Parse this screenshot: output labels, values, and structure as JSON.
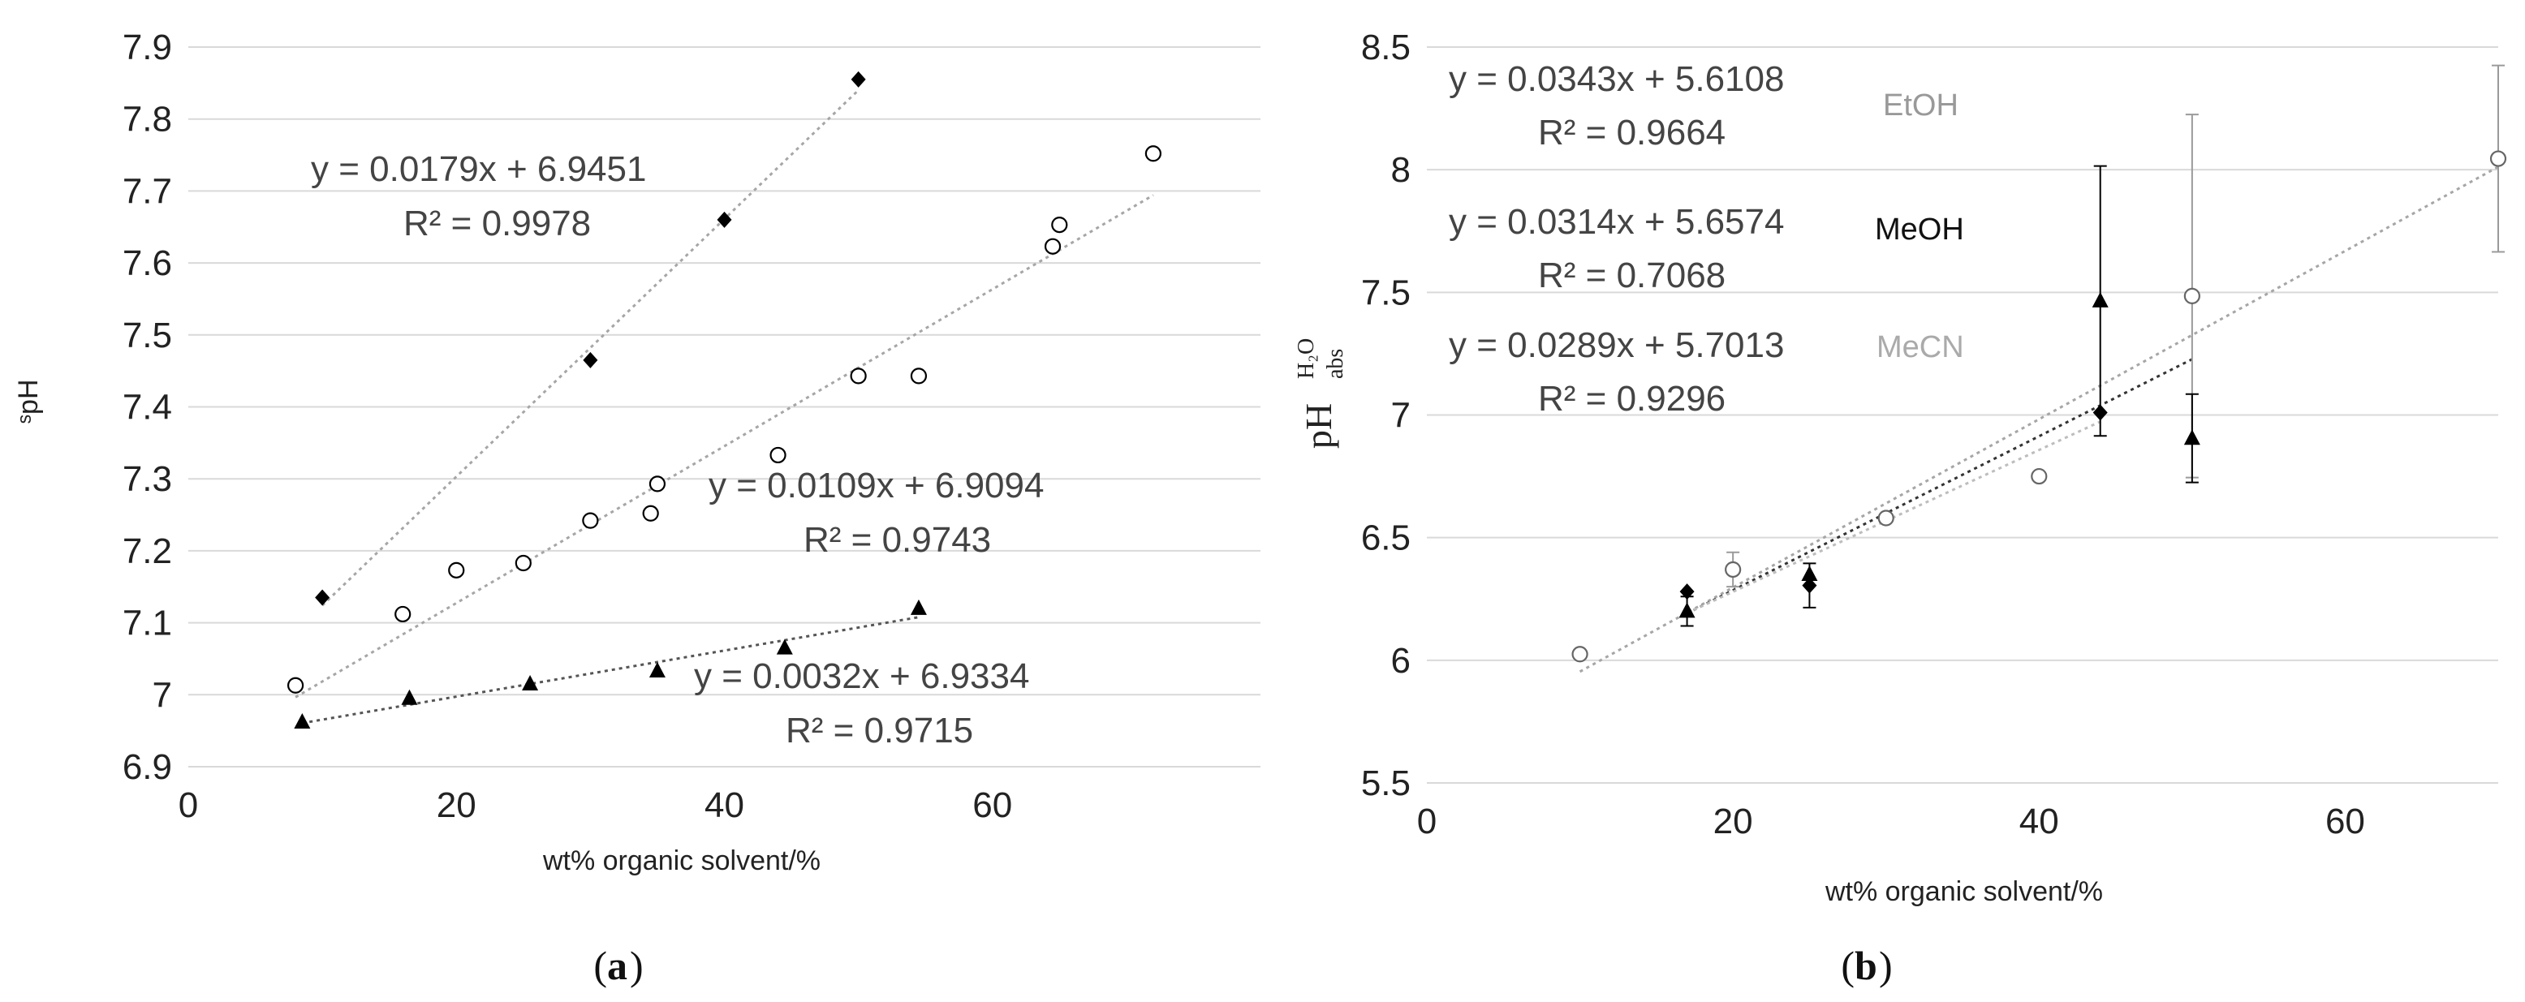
{
  "chart_data": [
    {
      "id": "a",
      "type": "scatter",
      "panel_label": "(a)",
      "panel_letter": "a",
      "xlabel": "wt% organic solvent/%",
      "ylabel": "ˢpH",
      "xlim": [
        0,
        80
      ],
      "ylim": [
        6.9,
        7.9
      ],
      "xticks": [
        0,
        20,
        40,
        60
      ],
      "yticks": [
        6.9,
        7,
        7.1,
        7.2,
        7.3,
        7.4,
        7.5,
        7.6,
        7.7,
        7.8,
        7.9
      ],
      "grid": true,
      "series": [
        {
          "name": "diamonds",
          "marker": "diamond",
          "color": "#000000",
          "trend_color": "#a6a6a6",
          "points": [
            [
              10,
              7.135
            ],
            [
              30,
              7.465
            ],
            [
              40,
              7.66
            ],
            [
              50,
              7.855
            ]
          ],
          "trendline": {
            "slope": 0.0179,
            "intercept": 6.9451,
            "x_range": [
              10,
              50
            ]
          },
          "equation": "y = 0.0179x + 6.9451",
          "r2": "R² = 0.9978"
        },
        {
          "name": "circles",
          "marker": "circle",
          "color": "#000000",
          "trend_color": "#a6a6a6",
          "points": [
            [
              8,
              7.013
            ],
            [
              16,
              7.112
            ],
            [
              20,
              7.173
            ],
            [
              25,
              7.183
            ],
            [
              30,
              7.242
            ],
            [
              34.5,
              7.252
            ],
            [
              35,
              7.293
            ],
            [
              44,
              7.333
            ],
            [
              50,
              7.443
            ],
            [
              54.5,
              7.443
            ],
            [
              64.5,
              7.623
            ],
            [
              65,
              7.653
            ],
            [
              72,
              7.752
            ]
          ],
          "trendline": {
            "slope": 0.0109,
            "intercept": 6.9094,
            "x_range": [
              8,
              72
            ]
          },
          "equation": "y = 0.0109x + 6.9094",
          "r2": "R² = 0.9743"
        },
        {
          "name": "triangles",
          "marker": "triangle",
          "color": "#000000",
          "trend_color": "#555555",
          "points": [
            [
              8.5,
              6.962
            ],
            [
              16.5,
              6.995
            ],
            [
              25.5,
              7.015
            ],
            [
              35,
              7.033
            ],
            [
              44.5,
              7.065
            ],
            [
              54.5,
              7.12
            ]
          ],
          "trendline": {
            "slope": 0.0032,
            "intercept": 6.9334,
            "x_range": [
              8.5,
              54.5
            ]
          },
          "equation": "y = 0.0032x + 6.9334",
          "r2": "R² = 0.9715"
        }
      ]
    },
    {
      "id": "b",
      "type": "scatter",
      "panel_label": "(b)",
      "panel_letter": "b",
      "xlabel": "wt% organic solvent/%",
      "ylabel": "pH abs H2O",
      "ylabel_main": "pH",
      "ylabel_sup": "H₂O",
      "ylabel_sub": "abs",
      "xlim": [
        0,
        70
      ],
      "ylim": [
        5.5,
        8.5
      ],
      "xticks": [
        0,
        20,
        40,
        60
      ],
      "yticks": [
        5.5,
        6,
        6.5,
        7,
        7.5,
        8,
        8.5
      ],
      "grid": true,
      "series": [
        {
          "name": "EtOH",
          "marker": "circle",
          "color": "#666666",
          "label_color": "#999999",
          "trend_color": "#a6a6a6",
          "points": [
            [
              10,
              6.025
            ],
            [
              20,
              6.37
            ],
            [
              30,
              6.58
            ],
            [
              40,
              6.75
            ],
            [
              50,
              7.485
            ],
            [
              70,
              8.045
            ]
          ],
          "errors": [
            0,
            0.07,
            0,
            0,
            0.74,
            0.38
          ],
          "trendline": {
            "slope": 0.0343,
            "intercept": 5.6108,
            "x_range": [
              10,
              70
            ]
          },
          "equation": "y = 0.0343x + 5.6108",
          "r2": "R² = 0.9664"
        },
        {
          "name": "MeOH",
          "marker": "diamond",
          "color": "#000000",
          "label_color": "#111111",
          "trend_color": "#333333",
          "points": [
            [
              17,
              6.28
            ],
            [
              25,
              6.305
            ],
            [
              44,
              7.01
            ]
          ],
          "errors": [
            0,
            0.09,
            0
          ],
          "trendline": {
            "slope": 0.0314,
            "intercept": 5.6574,
            "x_range": [
              17,
              50
            ]
          },
          "equation": "y = 0.0314x + 5.6574",
          "r2": "R² = 0.7068"
        },
        {
          "name": "MeCN",
          "marker": "triangle",
          "color": "#000000",
          "label_color": "#aaaaaa",
          "trend_color": "#bdbdbd",
          "points": [
            [
              17,
              6.2
            ],
            [
              25,
              6.35
            ],
            [
              44,
              7.465
            ],
            [
              50,
              6.905
            ]
          ],
          "errors": [
            0.06,
            0,
            0.55,
            0.18
          ],
          "trendline": {
            "slope": 0.0289,
            "intercept": 5.7013,
            "x_range": [
              17,
              44
            ]
          },
          "equation": "y = 0.0289x + 5.7013",
          "r2": "R² = 0.9296"
        }
      ]
    }
  ]
}
